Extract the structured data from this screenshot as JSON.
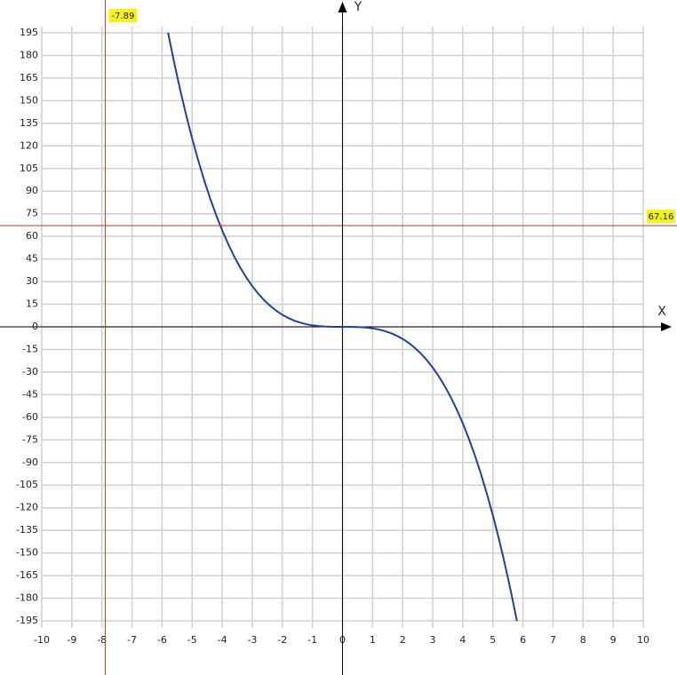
{
  "chart_data": {
    "type": "line",
    "x_label": "X",
    "y_label": "Y",
    "x": [
      -5.8,
      -5.6,
      -5.4,
      -5.2,
      -5.0,
      -4.8,
      -4.6,
      -4.4,
      -4.2,
      -4.0,
      -3.8,
      -3.6,
      -3.4,
      -3.2,
      -3.0,
      -2.8,
      -2.6,
      -2.4,
      -2.2,
      -2.0,
      -1.8,
      -1.6,
      -1.4,
      -1.2,
      -1.0,
      -0.8,
      -0.6,
      -0.4,
      -0.2,
      0,
      0.2,
      0.4,
      0.6,
      0.8,
      1.0,
      1.2,
      1.4,
      1.6,
      1.8,
      2.0,
      2.2,
      2.4,
      2.6,
      2.8,
      3.0,
      3.2,
      3.4,
      3.6,
      3.8,
      4.0,
      4.2,
      4.4,
      4.6,
      4.8,
      5.0,
      5.2,
      5.4,
      5.6,
      5.8
    ],
    "values": [
      195.112,
      175.616,
      157.464,
      140.608,
      125,
      110.592,
      97.336,
      85.184,
      74.088,
      64,
      54.872,
      46.656,
      39.304,
      32.768,
      27,
      21.952,
      17.576,
      13.824,
      10.648,
      8,
      5.832,
      4.096,
      2.744,
      1.728,
      1,
      0.512,
      0.216,
      0.064,
      0.008,
      0,
      -0.008,
      -0.064,
      -0.216,
      -0.512,
      -1,
      -1.728,
      -2.744,
      -4.096,
      -5.832,
      -8,
      -10.648,
      -13.824,
      -17.576,
      -21.952,
      -27,
      -32.768,
      -39.304,
      -46.656,
      -54.872,
      -64,
      -74.088,
      -85.184,
      -97.336,
      -110.592,
      -125,
      -140.608,
      -157.464,
      -175.616,
      -195.112
    ],
    "color": "#22409a",
    "xlim": [
      -10,
      10
    ],
    "ylim": [
      -195,
      195
    ],
    "xticks": [
      -10,
      -9,
      -8,
      -7,
      -6,
      -5,
      -4,
      -3,
      -2,
      -1,
      0,
      1,
      2,
      3,
      4,
      5,
      6,
      7,
      8,
      9,
      10
    ],
    "yticks": [
      195,
      180,
      165,
      150,
      135,
      120,
      105,
      90,
      75,
      60,
      45,
      30,
      15,
      0,
      -15,
      -30,
      -45,
      -60,
      -75,
      -90,
      -105,
      -120,
      -135,
      -150,
      -165,
      -180,
      -195
    ],
    "grid": true,
    "crosshair": {
      "x": -7.89,
      "y": 67.16,
      "color": "#c0392b"
    }
  }
}
